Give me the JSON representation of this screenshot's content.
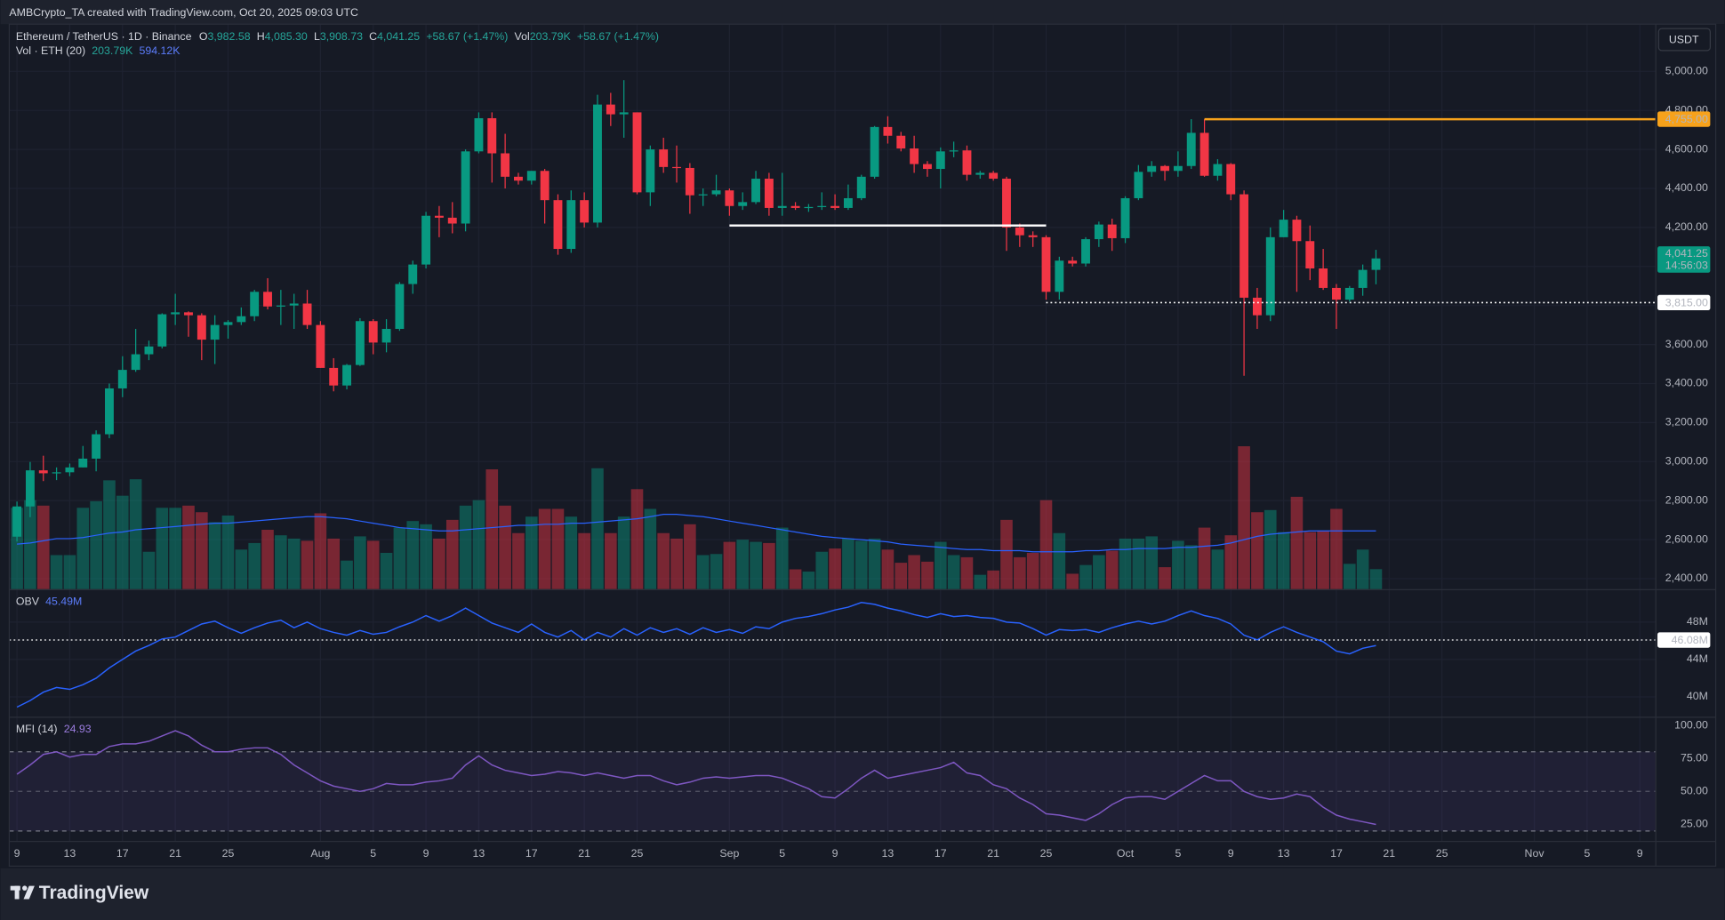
{
  "header": "AMBCrypto_TA created with TradingView.com, Oct 20, 2025 09:03 UTC",
  "brand": "TradingView",
  "currency": "USDT",
  "chart_data": [
    {
      "type": "candlestick",
      "legend": [
        "Ethereum / TetherUS · 1D · Binance",
        "O",
        "3,982.58",
        "H",
        "4,085.30",
        "L",
        "3,908.73",
        "C",
        "4,041.25",
        "+58.67 (+1.47%)",
        "Vol",
        "203.79K",
        "+58.67 (+1.47%)"
      ],
      "volume_legend": [
        "Vol · ETH (20)",
        "203.79K",
        "594.12K"
      ],
      "up_color": "#089981",
      "down_color": "#f23645",
      "volume_ma_color": "#2962ff",
      "xlim": [
        -0.583,
        124.167
      ],
      "ylim": [
        2346,
        5242
      ],
      "yticks": [
        {
          "value": 2400,
          "label": "2,400.00"
        },
        {
          "value": 2600,
          "label": "2,600.00"
        },
        {
          "value": 2800,
          "label": "2,800.00"
        },
        {
          "value": 3000,
          "label": "3,000.00"
        },
        {
          "value": 3200,
          "label": "3,200.00"
        },
        {
          "value": 3400,
          "label": "3,400.00"
        },
        {
          "value": 3600,
          "label": "3,600.00"
        },
        {
          "value": 3800,
          "label": "3,800.00"
        },
        {
          "value": 4000,
          "label": "4,000.00"
        },
        {
          "value": 4200,
          "label": "4,200.00"
        },
        {
          "value": 4400,
          "label": "4,400.00"
        },
        {
          "value": 4600,
          "label": "4,600.00"
        },
        {
          "value": 4800,
          "label": "4,800.00"
        },
        {
          "value": 5000,
          "label": "5,000.00"
        }
      ],
      "grid": true,
      "open": [
        2615,
        2770,
        2955,
        2940,
        2945,
        2970,
        3015,
        3140,
        3375,
        3470,
        3550,
        3590,
        3755,
        3765,
        3750,
        3625,
        3700,
        3715,
        3745,
        3870,
        3795,
        3800,
        3810,
        3700,
        3480,
        3390,
        3495,
        3720,
        3610,
        3680,
        3910,
        4010,
        4260,
        4250,
        4220,
        4590,
        4760,
        4580,
        4460,
        4440,
        4490,
        4340,
        4090,
        4340,
        4225,
        4830,
        4780,
        4790,
        4380,
        4600,
        4510,
        4505,
        4365,
        4370,
        4390,
        4310,
        4330,
        4450,
        4300,
        4310,
        4300,
        4305,
        4310,
        4300,
        4350,
        4460,
        4715,
        4670,
        4605,
        4525,
        4500,
        4590,
        4595,
        4470,
        4480,
        4450,
        4200,
        4160,
        4150,
        3870,
        4030,
        4015,
        4140,
        4215,
        4145,
        4350,
        4485,
        4515,
        4490,
        4515,
        4685,
        4465,
        4525,
        4370,
        3840,
        3750,
        4150,
        4240,
        4130,
        3990,
        3890,
        3830,
        3890,
        3982.58
      ],
      "high": [
        2795,
        2998,
        3030,
        2970,
        2990,
        3080,
        3160,
        3400,
        3540,
        3680,
        3620,
        3760,
        3860,
        3770,
        3760,
        3750,
        3725,
        3790,
        3880,
        3940,
        3880,
        3860,
        3880,
        3720,
        3530,
        3500,
        3735,
        3730,
        3730,
        3920,
        4030,
        4280,
        4310,
        4330,
        4600,
        4790,
        4790,
        4680,
        4480,
        4490,
        4500,
        4370,
        4390,
        4380,
        4880,
        4890,
        4955,
        4790,
        4620,
        4660,
        4620,
        4530,
        4400,
        4470,
        4400,
        4380,
        4490,
        4480,
        4480,
        4330,
        4320,
        4380,
        4370,
        4420,
        4470,
        4720,
        4770,
        4690,
        4670,
        4540,
        4610,
        4640,
        4620,
        4490,
        4490,
        4460,
        4220,
        4180,
        4160,
        4050,
        4050,
        4150,
        4230,
        4245,
        4360,
        4520,
        4540,
        4520,
        4590,
        4755,
        4755,
        4550,
        4530,
        4390,
        3890,
        4200,
        4290,
        4260,
        4210,
        4090,
        3910,
        3900,
        4010,
        4085.3
      ],
      "low": [
        2590,
        2715,
        2900,
        2905,
        2925,
        2970,
        2950,
        3120,
        3330,
        3460,
        3520,
        3580,
        3700,
        3640,
        3520,
        3500,
        3630,
        3700,
        3720,
        3780,
        3700,
        3680,
        3680,
        3480,
        3360,
        3370,
        3490,
        3550,
        3560,
        3670,
        3860,
        3990,
        4150,
        4170,
        4180,
        4580,
        4430,
        4400,
        4420,
        4420,
        4220,
        4060,
        4070,
        4200,
        4200,
        4720,
        4660,
        4370,
        4310,
        4480,
        4430,
        4270,
        4310,
        4360,
        4260,
        4290,
        4320,
        4260,
        4260,
        4290,
        4280,
        4290,
        4290,
        4290,
        4340,
        4450,
        4630,
        4590,
        4480,
        4460,
        4400,
        4560,
        4440,
        4450,
        4440,
        4080,
        4100,
        4100,
        3830,
        3830,
        4000,
        4000,
        4100,
        4080,
        4120,
        4340,
        4460,
        4440,
        4460,
        4500,
        4460,
        4440,
        4340,
        3440,
        3680,
        3720,
        4150,
        3870,
        3930,
        3880,
        3680,
        3820,
        3850,
        3908.73
      ],
      "close": [
        2770,
        2955,
        2940,
        2945,
        2970,
        3015,
        3140,
        3375,
        3470,
        3550,
        3590,
        3755,
        3765,
        3750,
        3625,
        3700,
        3715,
        3745,
        3870,
        3795,
        3800,
        3810,
        3700,
        3480,
        3390,
        3495,
        3720,
        3610,
        3680,
        3910,
        4010,
        4260,
        4250,
        4220,
        4590,
        4760,
        4580,
        4460,
        4440,
        4490,
        4340,
        4090,
        4340,
        4225,
        4830,
        4780,
        4790,
        4380,
        4600,
        4510,
        4505,
        4365,
        4370,
        4390,
        4310,
        4330,
        4450,
        4300,
        4310,
        4300,
        4305,
        4310,
        4300,
        4350,
        4460,
        4715,
        4670,
        4605,
        4525,
        4500,
        4590,
        4595,
        4470,
        4480,
        4450,
        4200,
        4160,
        4150,
        3870,
        4030,
        4015,
        4140,
        4215,
        4145,
        4350,
        4485,
        4515,
        4490,
        4515,
        4685,
        4465,
        4525,
        4370,
        3840,
        3750,
        4150,
        4240,
        4130,
        3990,
        3890,
        3830,
        3890,
        3982.58,
        4041.25
      ],
      "volume": [
        829,
        907,
        851,
        347,
        347,
        829,
        896,
        1109,
        952,
        1120,
        381,
        829,
        829,
        851,
        784,
        683,
        750,
        403,
        470,
        605,
        549,
        515,
        493,
        773,
        515,
        291,
        538,
        493,
        370,
        627,
        694,
        661,
        515,
        706,
        851,
        907,
        1221,
        851,
        571,
        739,
        818,
        818,
        739,
        571,
        1232,
        571,
        739,
        1019,
        818,
        571,
        515,
        661,
        347,
        358,
        482,
        504,
        482,
        470,
        627,
        202,
        179,
        381,
        414,
        515,
        493,
        515,
        403,
        269,
        347,
        280,
        482,
        347,
        325,
        146,
        190,
        706,
        325,
        370,
        907,
        571,
        157,
        246,
        347,
        392,
        515,
        515,
        538,
        224,
        493,
        448,
        627,
        403,
        549,
        1456,
        784,
        806,
        582,
        941,
        582,
        594,
        818,
        258,
        403,
        203.79
      ],
      "volume_ma": [
        459,
        470,
        493,
        515,
        515,
        526,
        549,
        571,
        582,
        605,
        616,
        627,
        638,
        650,
        661,
        672,
        672,
        683,
        694,
        706,
        717,
        728,
        739,
        739,
        728,
        717,
        694,
        672,
        650,
        627,
        616,
        605,
        594,
        594,
        605,
        616,
        627,
        638,
        650,
        650,
        661,
        661,
        672,
        672,
        683,
        694,
        706,
        717,
        739,
        762,
        762,
        750,
        739,
        717,
        694,
        672,
        650,
        627,
        605,
        582,
        560,
        538,
        526,
        515,
        504,
        493,
        482,
        459,
        448,
        437,
        426,
        414,
        403,
        403,
        392,
        392,
        392,
        381,
        381,
        381,
        381,
        392,
        392,
        403,
        403,
        414,
        414,
        414,
        426,
        426,
        437,
        448,
        470,
        504,
        538,
        560,
        571,
        582,
        594,
        594,
        594,
        594,
        594,
        594.12
      ],
      "price_lines": [
        {
          "value": 4755,
          "label": "4,755.00",
          "from": 90,
          "color": "#f7a21b",
          "dashed": false
        },
        {
          "value": 3815,
          "label": "3,815.00",
          "from": 78,
          "color": "#ffffff",
          "dashed": true
        },
        {
          "value": 4210,
          "from": 54,
          "to": 78,
          "color": "#ffffff",
          "dashed": false
        }
      ],
      "last_price_label": "4,041.25",
      "countdown": "14:56:03"
    },
    {
      "type": "line",
      "title": "OBV",
      "legend_value": "45.49M",
      "color": "#2962ff",
      "xlim": [
        -0.583,
        124.167
      ],
      "ylim": [
        37.88,
        51.41
      ],
      "yticks": [
        {
          "value": 40,
          "label": "40M"
        },
        {
          "value": 44,
          "label": "44M"
        },
        {
          "value": 48,
          "label": "48M"
        }
      ],
      "grid": true,
      "values": [
        38.9,
        39.6,
        40.5,
        41.0,
        40.8,
        41.3,
        42.0,
        43.1,
        44.0,
        44.9,
        45.5,
        46.2,
        46.4,
        47.1,
        47.8,
        48.1,
        47.4,
        46.8,
        47.4,
        47.9,
        48.2,
        47.4,
        48.0,
        47.3,
        46.9,
        46.6,
        47.1,
        46.7,
        46.9,
        47.5,
        48.0,
        48.7,
        48.1,
        48.7,
        49.5,
        48.7,
        47.9,
        47.4,
        46.9,
        47.8,
        46.9,
        46.4,
        47.1,
        46.1,
        46.9,
        46.4,
        47.3,
        46.6,
        47.4,
        46.9,
        47.3,
        46.7,
        47.4,
        46.9,
        47.2,
        46.8,
        47.5,
        47.3,
        48.0,
        48.4,
        48.6,
        48.9,
        49.3,
        49.6,
        50.1,
        49.9,
        49.5,
        49.2,
        48.8,
        48.5,
        48.9,
        48.6,
        48.7,
        48.5,
        48.4,
        48.0,
        47.9,
        47.3,
        46.6,
        47.2,
        47.1,
        47.2,
        46.9,
        47.4,
        47.8,
        48.1,
        47.8,
        48.1,
        48.7,
        49.2,
        48.7,
        48.4,
        47.8,
        46.6,
        46.1,
        46.9,
        47.5,
        46.9,
        46.4,
        45.9,
        44.9,
        44.6,
        45.2,
        45.49
      ],
      "marker": {
        "value": 46.08,
        "label": "46.08M"
      }
    },
    {
      "type": "line",
      "title": "MFI (14)",
      "legend_value": "24.93",
      "color": "#7e57c2",
      "xlim": [
        -0.583,
        124.167
      ],
      "ylim": [
        12.5,
        105.8
      ],
      "yticks": [
        {
          "value": 25,
          "label": "25.00"
        },
        {
          "value": 50,
          "label": "50.00"
        },
        {
          "value": 75,
          "label": "75.00"
        },
        {
          "value": 100,
          "label": "100.00"
        }
      ],
      "grid": false,
      "values": [
        63,
        70,
        78,
        80,
        76,
        78,
        78,
        84,
        86,
        86,
        88,
        92,
        96,
        92,
        85,
        80,
        80,
        82,
        83,
        83,
        78,
        70,
        64,
        58,
        54,
        52,
        50,
        52,
        56,
        55,
        55,
        57,
        58,
        60,
        70,
        77,
        70,
        66,
        64,
        62,
        63,
        65,
        64,
        62,
        64,
        62,
        60,
        62,
        62,
        58,
        55,
        57,
        60,
        61,
        60,
        61,
        62,
        62,
        60,
        56,
        52,
        46,
        45,
        52,
        60,
        66,
        60,
        62,
        64,
        66,
        68,
        72,
        64,
        62,
        55,
        52,
        45,
        40,
        33,
        32,
        30,
        28,
        33,
        40,
        45,
        46,
        46,
        44,
        50,
        56,
        62,
        58,
        58,
        50,
        46,
        44,
        45,
        48,
        46,
        38,
        32,
        29,
        27,
        24.93
      ],
      "band": [
        20,
        80
      ],
      "midline": 50,
      "xticks": [
        {
          "value": 0,
          "label": "9"
        },
        {
          "value": 4,
          "label": "13"
        },
        {
          "value": 8,
          "label": "17"
        },
        {
          "value": 12,
          "label": "21"
        },
        {
          "value": 16,
          "label": "25"
        },
        {
          "value": 23,
          "label": "Aug"
        },
        {
          "value": 27,
          "label": "5"
        },
        {
          "value": 31,
          "label": "9"
        },
        {
          "value": 35,
          "label": "13"
        },
        {
          "value": 39,
          "label": "17"
        },
        {
          "value": 43,
          "label": "21"
        },
        {
          "value": 47,
          "label": "25"
        },
        {
          "value": 54,
          "label": "Sep"
        },
        {
          "value": 58,
          "label": "5"
        },
        {
          "value": 62,
          "label": "9"
        },
        {
          "value": 66,
          "label": "13"
        },
        {
          "value": 70,
          "label": "17"
        },
        {
          "value": 74,
          "label": "21"
        },
        {
          "value": 78,
          "label": "25"
        },
        {
          "value": 84,
          "label": "Oct"
        },
        {
          "value": 88,
          "label": "5"
        },
        {
          "value": 92,
          "label": "9"
        },
        {
          "value": 96,
          "label": "13"
        },
        {
          "value": 100,
          "label": "17"
        },
        {
          "value": 104,
          "label": "21"
        },
        {
          "value": 108,
          "label": "25"
        },
        {
          "value": 115,
          "label": "Nov"
        },
        {
          "value": 119,
          "label": "5"
        },
        {
          "value": 123,
          "label": "9"
        }
      ]
    }
  ]
}
